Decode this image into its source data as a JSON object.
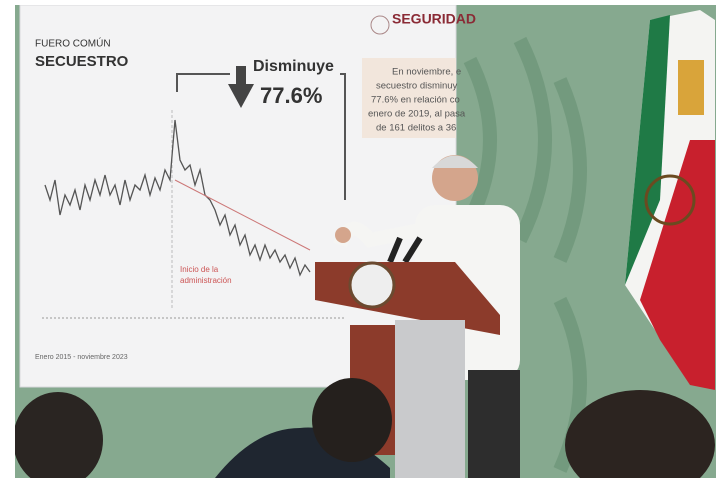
{
  "screen": {
    "header": "SEGURIDAD",
    "kicker": "FUERO COMÚN",
    "title": "SECUESTRO",
    "callout": {
      "label": "Disminuye",
      "value": "77.6%"
    },
    "note_lines": [
      "En noviembre, e",
      "secuestro disminuy",
      "77.6% en relación co",
      "enero de 2019, al pasa",
      "de 161 delitos a 36"
    ],
    "annotation_lines": [
      "Inicio de la",
      "administración"
    ],
    "footer": "Enero 2015 - noviembre 2023"
  }
}
